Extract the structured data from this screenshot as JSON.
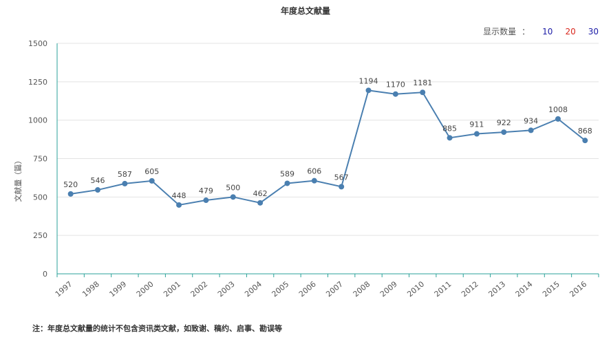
{
  "title": "年度总文献量",
  "count_selector": {
    "label": "显示数量",
    "separator": "：",
    "options": [
      {
        "label": "10",
        "color": "#1a1aa6"
      },
      {
        "label": "20",
        "color": "#d9261c"
      },
      {
        "label": "30",
        "color": "#1a1aa6"
      }
    ]
  },
  "note": "注：年度总文献量的统计不包含资讯类文献，如致谢、稿约、启事、勘误等",
  "chart_data": {
    "type": "line",
    "categories": [
      "1997",
      "1998",
      "1999",
      "2000",
      "2001",
      "2002",
      "2003",
      "2004",
      "2005",
      "2006",
      "2007",
      "2008",
      "2009",
      "2010",
      "2011",
      "2012",
      "2013",
      "2014",
      "2015",
      "2016"
    ],
    "series": [
      {
        "values": [
          520,
          546,
          587,
          605,
          448,
          479,
          500,
          462,
          589,
          606,
          567,
          1194,
          1170,
          1181,
          885,
          911,
          922,
          934,
          1008,
          868
        ]
      }
    ],
    "ylabel": "文献量（篇）",
    "xlabel": "",
    "ylim": [
      0,
      1500
    ],
    "yticks": [
      0,
      250,
      500,
      750,
      1000,
      1250,
      1500
    ],
    "grid": true,
    "line_color": "#4a7fb0",
    "axis_color": "#2aa198"
  }
}
